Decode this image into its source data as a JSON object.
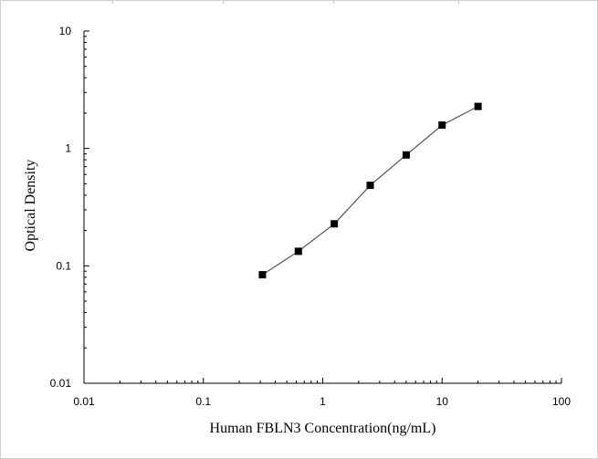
{
  "chart_data": {
    "type": "scatter",
    "xlabel": "Human FBLN3 Concentration(ng/mL)",
    "ylabel": "Optical Density",
    "xscale": "log",
    "yscale": "log",
    "xlim": [
      0.01,
      100
    ],
    "ylim": [
      0.01,
      10
    ],
    "xticks": [
      "0.01",
      "0.1",
      "1",
      "10",
      "100"
    ],
    "yticks": [
      "0.01",
      "0.1",
      "1",
      "10"
    ],
    "grid": false,
    "connected": true,
    "series": [
      {
        "points": [
          {
            "x": 0.3125,
            "y": 0.084
          },
          {
            "x": 0.625,
            "y": 0.133
          },
          {
            "x": 1.25,
            "y": 0.228
          },
          {
            "x": 2.5,
            "y": 0.485
          },
          {
            "x": 5,
            "y": 0.88
          },
          {
            "x": 10,
            "y": 1.58
          },
          {
            "x": 20,
            "y": 2.28
          }
        ]
      }
    ],
    "colors": {
      "line": "#555555",
      "marker": "#000000",
      "axis": "#000000"
    }
  }
}
